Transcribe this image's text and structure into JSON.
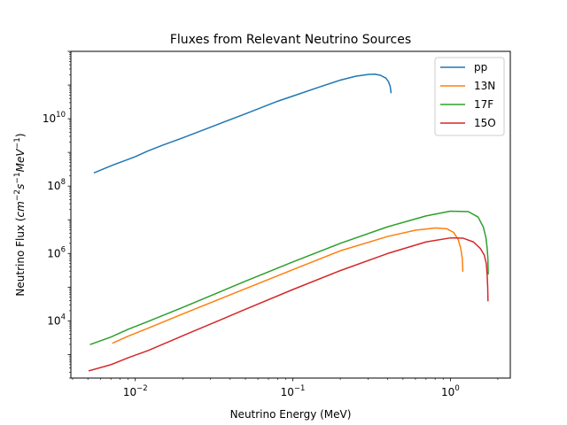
{
  "chart_data": {
    "type": "line",
    "title": "Fluxes from Relevant Neutrino Sources",
    "xlabel": "Neutrino Energy (MeV)",
    "ylabel": {
      "prefix": "Neutrino Flux (",
      "cm": "cm",
      "cm_exp": "−2",
      "s": "s",
      "s_exp": "−1",
      "mev": "MeV",
      "mev_exp": "−1",
      "suffix": ")"
    },
    "xscale": "log",
    "yscale": "log",
    "xlim": [
      0.0039,
      2.4
    ],
    "ylim": [
      200,
      1000000000000.0
    ],
    "grid": false,
    "legend": "top-right",
    "x_ticks": [
      {
        "value": 0.01,
        "base": "10",
        "exp": "−2"
      },
      {
        "value": 0.1,
        "base": "10",
        "exp": "−1"
      },
      {
        "value": 1,
        "base": "10",
        "exp": "0"
      }
    ],
    "y_ticks": [
      {
        "value": 10000,
        "base": "10",
        "exp": "4"
      },
      {
        "value": 1000000,
        "base": "10",
        "exp": "6"
      },
      {
        "value": 100000000,
        "base": "10",
        "exp": "8"
      },
      {
        "value": 10000000000,
        "base": "10",
        "exp": "10"
      }
    ],
    "series": [
      {
        "name": "pp",
        "color": "#1f77b4",
        "x": [
          0.0055,
          0.007,
          0.0085,
          0.01,
          0.012,
          0.015,
          0.02,
          0.03,
          0.05,
          0.08,
          0.1,
          0.15,
          0.2,
          0.25,
          0.3,
          0.33,
          0.36,
          0.39,
          0.405,
          0.415,
          0.42
        ],
        "y": [
          250000000,
          400000000,
          560000000,
          750000000,
          1100000000,
          1650000000,
          2700000000,
          5600000000,
          14000000000,
          33000000000,
          47000000000,
          90000000000,
          140000000000,
          182000000000,
          205000000000,
          210000000000,
          195000000000,
          160000000000,
          125000000000,
          90000000000,
          60000000000
        ]
      },
      {
        "name": "13N",
        "color": "#ff7f0e",
        "x": [
          0.0072,
          0.009,
          0.012,
          0.02,
          0.05,
          0.1,
          0.2,
          0.4,
          0.6,
          0.8,
          0.95,
          1.05,
          1.12,
          1.16,
          1.19,
          1.199
        ],
        "y": [
          2200,
          3500,
          6000,
          16000,
          90000,
          330000,
          1200000,
          3200000,
          4900000,
          5700000,
          5400000,
          4200000,
          2600000,
          1500000,
          700000,
          300000
        ]
      },
      {
        "name": "17F",
        "color": "#2ca02c",
        "x": [
          0.0052,
          0.007,
          0.009,
          0.012,
          0.02,
          0.05,
          0.1,
          0.2,
          0.4,
          0.7,
          1.0,
          1.3,
          1.5,
          1.62,
          1.68,
          1.71,
          1.73,
          1.738
        ],
        "y": [
          2000,
          3300,
          5600,
          9500,
          25000,
          150000,
          560000,
          2000000,
          6200000,
          13000000,
          18000000,
          17500000,
          12000000,
          6000000,
          3000000,
          1500000,
          700000,
          250000
        ]
      },
      {
        "name": "15O",
        "color": "#d62728",
        "x": [
          0.0051,
          0.007,
          0.009,
          0.012,
          0.02,
          0.05,
          0.1,
          0.2,
          0.4,
          0.7,
          1.0,
          1.2,
          1.4,
          1.55,
          1.64,
          1.69,
          1.71,
          1.725,
          1.732
        ],
        "y": [
          330,
          500,
          800,
          1300,
          3600,
          22000,
          85000,
          310000,
          1000000,
          2200000,
          2900000,
          2850000,
          2200000,
          1400000,
          900000,
          500000,
          250000,
          100000,
          40000
        ]
      }
    ]
  }
}
